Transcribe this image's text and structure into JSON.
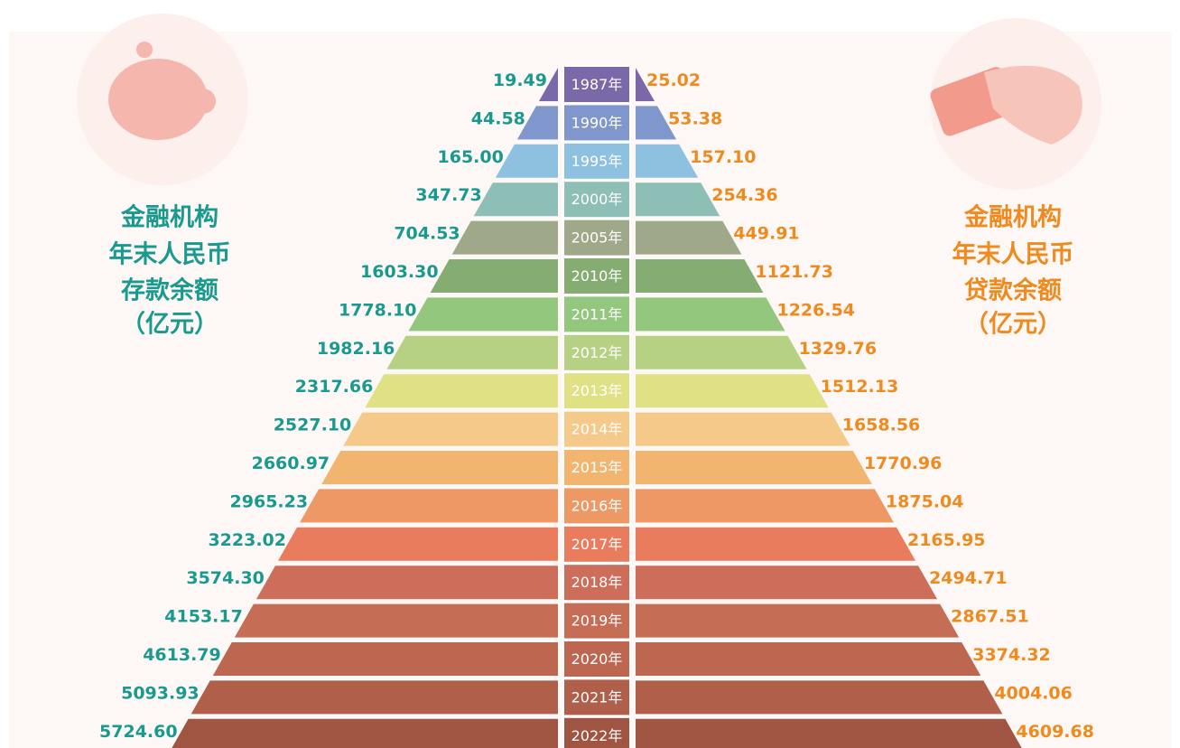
{
  "left_title": [
    "金融机构",
    "年末人民币",
    "存款余额",
    "（亿元）"
  ],
  "right_title": [
    "金融机构",
    "年末人民币",
    "贷款余额",
    "（亿元）"
  ],
  "rows": [
    {
      "year": "1987年",
      "deposit": "19.49",
      "loan": "25.02",
      "color": "#7b68a8"
    },
    {
      "year": "1990年",
      "deposit": "44.58",
      "loan": "53.38",
      "color": "#7f97cc"
    },
    {
      "year": "1995年",
      "deposit": "165.00",
      "loan": "157.10",
      "color": "#8ec0e0"
    },
    {
      "year": "2000年",
      "deposit": "347.73",
      "loan": "254.36",
      "color": "#8dbfb6"
    },
    {
      "year": "2005年",
      "deposit": "704.53",
      "loan": "449.91",
      "color": "#a0a88a"
    },
    {
      "year": "2010年",
      "deposit": "1603.30",
      "loan": "1121.73",
      "color": "#85ad72"
    },
    {
      "year": "2011年",
      "deposit": "1778.10",
      "loan": "1226.54",
      "color": "#93c77d"
    },
    {
      "year": "2012年",
      "deposit": "1982.16",
      "loan": "1329.76",
      "color": "#b6d183"
    },
    {
      "year": "2013年",
      "deposit": "2317.66",
      "loan": "1512.13",
      "color": "#dfe184"
    },
    {
      "year": "2014年",
      "deposit": "2527.10",
      "loan": "1658.56",
      "color": "#f5c98a"
    },
    {
      "year": "2015年",
      "deposit": "2660.97",
      "loan": "1770.96",
      "color": "#f1b56f"
    },
    {
      "year": "2016年",
      "deposit": "2965.23",
      "loan": "1875.04",
      "color": "#ee9866"
    },
    {
      "year": "2017年",
      "deposit": "3223.02",
      "loan": "2165.95",
      "color": "#e87c5c"
    },
    {
      "year": "2018年",
      "deposit": "3574.30",
      "loan": "2494.71",
      "color": "#cc6e5a"
    },
    {
      "year": "2019年",
      "deposit": "4153.17",
      "loan": "2867.51",
      "color": "#c56d55"
    },
    {
      "year": "2020年",
      "deposit": "4613.79",
      "loan": "3374.32",
      "color": "#bd6650"
    },
    {
      "year": "2021年",
      "deposit": "5093.93",
      "loan": "4004.06",
      "color": "#b05f4b"
    },
    {
      "year": "2022年",
      "deposit": "5724.60",
      "loan": "4609.68",
      "color": "#a05442"
    }
  ]
}
